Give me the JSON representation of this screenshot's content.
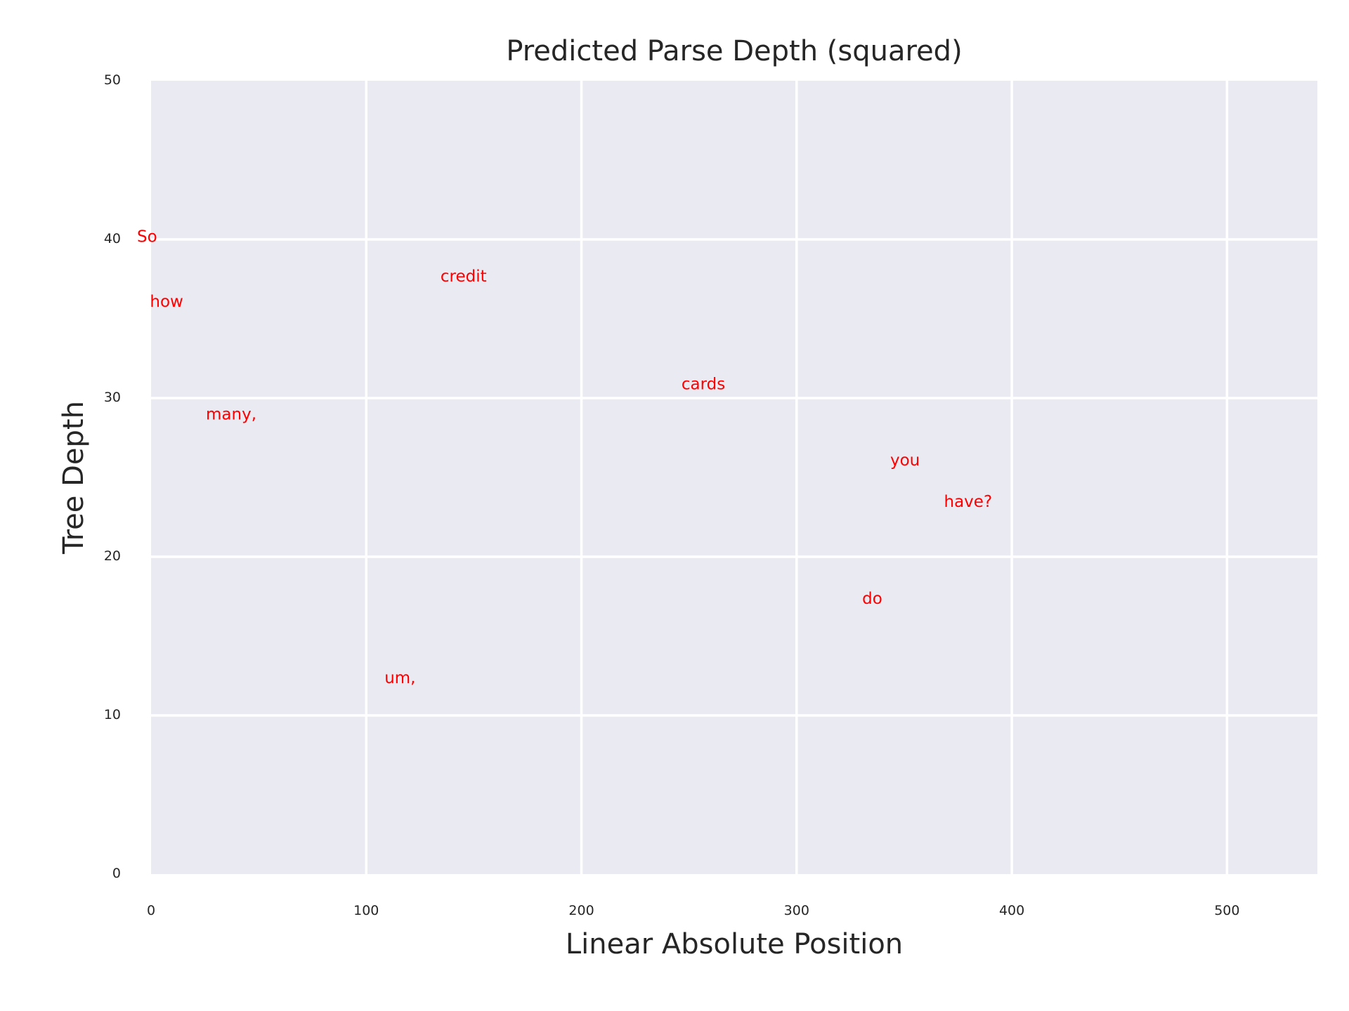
{
  "chart_data": {
    "type": "scatter",
    "title": "Predicted Parse Depth (squared)",
    "xlabel": "Linear Absolute Position",
    "ylabel": "Tree Depth",
    "xlim": [
      0,
      542
    ],
    "ylim": [
      0,
      50
    ],
    "xticks": [
      0,
      100,
      200,
      300,
      400,
      500
    ],
    "yticks": [
      0,
      10,
      20,
      30,
      40,
      50
    ],
    "grid": true,
    "background_color": "#eaeaf2",
    "grid_color": "#ffffff",
    "label_color": "#ff0000",
    "points": [
      {
        "label": "So",
        "x": 0,
        "y": 40.2
      },
      {
        "label": "how",
        "x": 6,
        "y": 36.1
      },
      {
        "label": "many,",
        "x": 32,
        "y": 29.0
      },
      {
        "label": "um,",
        "x": 115,
        "y": 12.4
      },
      {
        "label": "credit",
        "x": 141,
        "y": 37.7
      },
      {
        "label": "cards",
        "x": 253,
        "y": 30.9
      },
      {
        "label": "do",
        "x": 337,
        "y": 17.4
      },
      {
        "label": "you",
        "x": 350,
        "y": 26.1
      },
      {
        "label": "have?",
        "x": 375,
        "y": 23.5
      }
    ]
  }
}
